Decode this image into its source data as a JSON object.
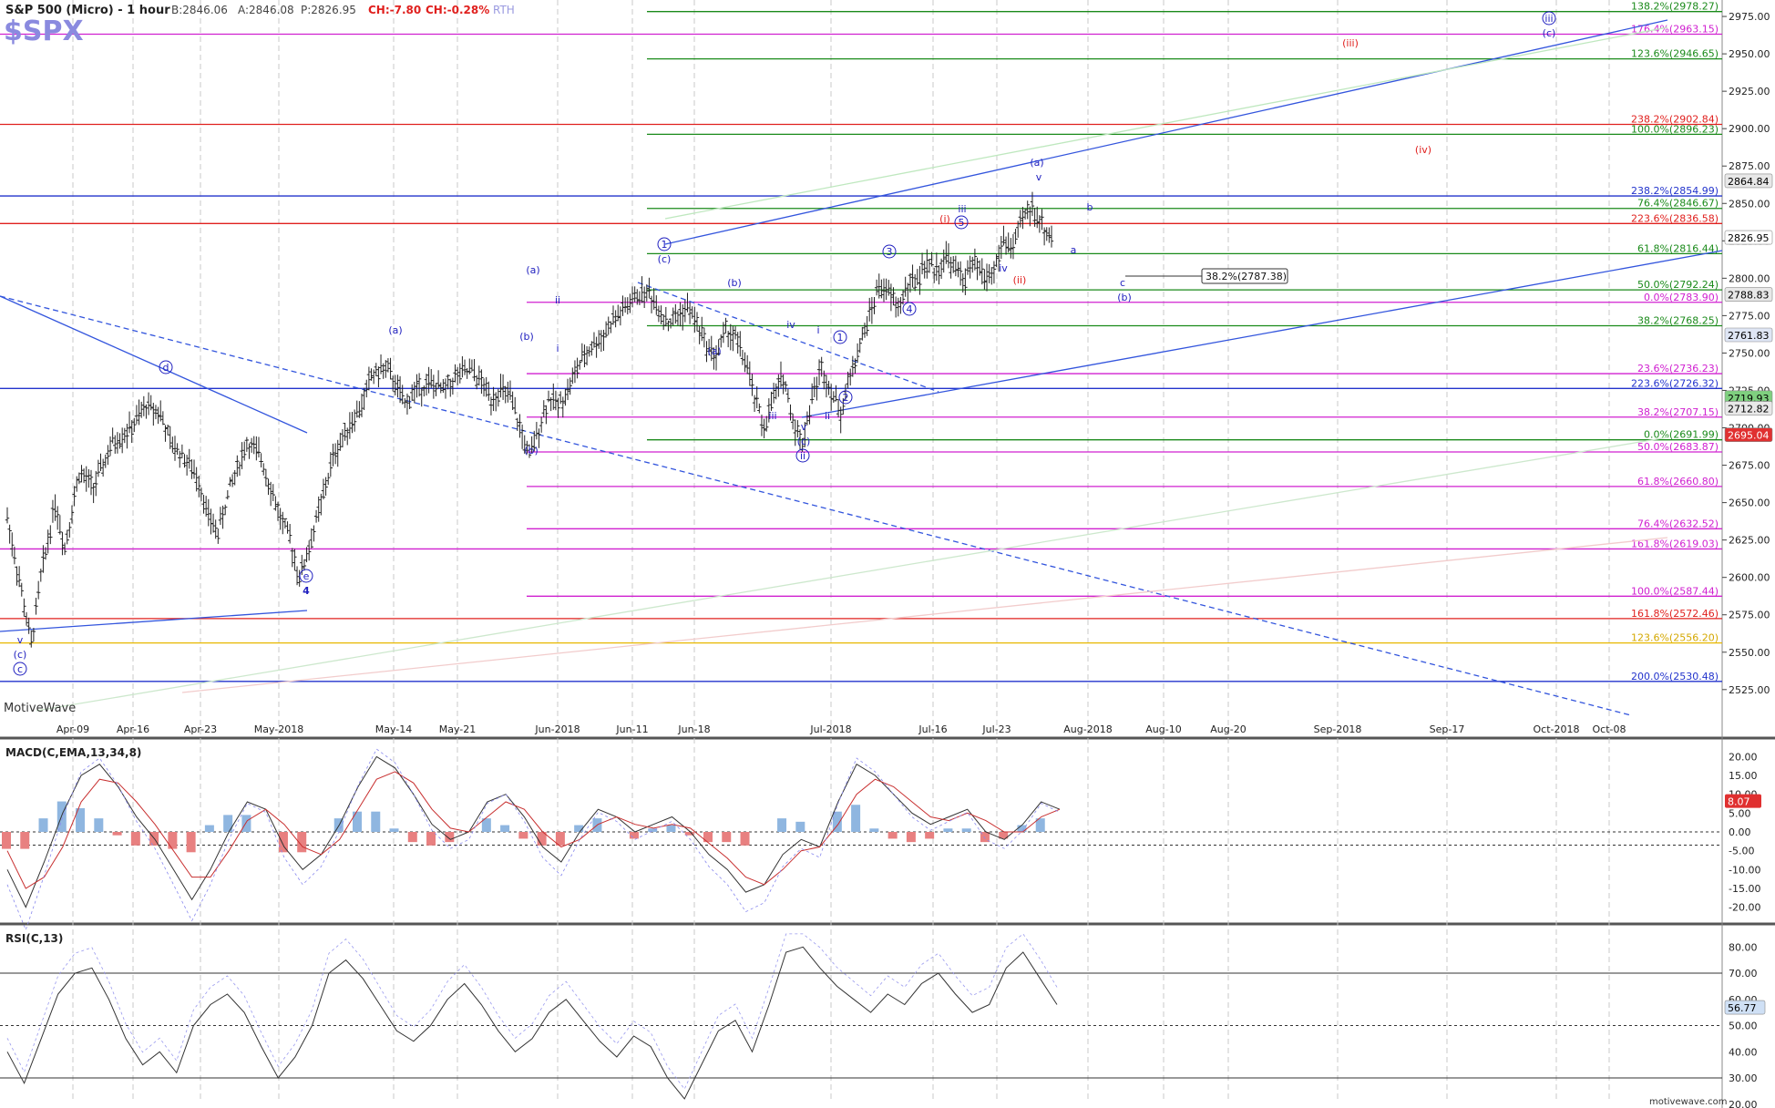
{
  "header": {
    "symbol_title": "S&P 500 (Micro) - 1 hour",
    "bid": "B:2846.06",
    "ask": "A:2846.08",
    "price": "P:2826.95",
    "change": "CH:-7.80",
    "change_pct": "CH:-0.28%",
    "session": "RTH",
    "ticker": "$SPX",
    "watermark": "MotiveWave",
    "footer_site": "motivewave.com"
  },
  "colors": {
    "green": "#1a8a1a",
    "red": "#e0201e",
    "magenta": "#d020d0",
    "blue": "#2233cc",
    "orange": "#e8b800",
    "navy": "#1f1fbf",
    "candle": "#222222"
  },
  "chart_data": [
    {
      "type": "bar",
      "title": "S&P 500 (Micro) - 1 hour",
      "x_labels": [
        "Apr-09",
        "Apr-16",
        "Apr-23",
        "May-2018",
        "May-14",
        "May-21",
        "Jun-2018",
        "Jun-11",
        "Jun-18",
        "Jul-2018",
        "Jul-16",
        "Jul-23",
        "Aug-2018",
        "Aug-10",
        "Aug-20",
        "Sep-2018",
        "Sep-17",
        "Oct-2018",
        "Oct-08"
      ],
      "y_ticks": [
        2525,
        2550,
        2575,
        2600,
        2625,
        2650,
        2675,
        2700,
        2725,
        2750,
        2775,
        2800,
        2825,
        2850,
        2875,
        2900,
        2925,
        2950,
        2975
      ],
      "ylim": [
        2506,
        2986
      ],
      "price_path": [
        [
          0,
          2640
        ],
        [
          6,
          2590
        ],
        [
          10,
          2555
        ],
        [
          14,
          2600
        ],
        [
          20,
          2650
        ],
        [
          24,
          2620
        ],
        [
          30,
          2670
        ],
        [
          36,
          2660
        ],
        [
          44,
          2690
        ],
        [
          52,
          2700
        ],
        [
          58,
          2715
        ],
        [
          64,
          2710
        ],
        [
          68,
          2690
        ],
        [
          74,
          2680
        ],
        [
          80,
          2665
        ],
        [
          84,
          2640
        ],
        [
          88,
          2630
        ],
        [
          93,
          2660
        ],
        [
          100,
          2690
        ],
        [
          106,
          2680
        ],
        [
          110,
          2660
        ],
        [
          114,
          2640
        ],
        [
          118,
          2625
        ],
        [
          122,
          2600
        ],
        [
          126,
          2620
        ],
        [
          132,
          2655
        ],
        [
          136,
          2680
        ],
        [
          142,
          2700
        ],
        [
          148,
          2715
        ],
        [
          152,
          2735
        ],
        [
          158,
          2740
        ],
        [
          162,
          2730
        ],
        [
          166,
          2715
        ],
        [
          170,
          2725
        ],
        [
          176,
          2730
        ],
        [
          182,
          2725
        ],
        [
          188,
          2735
        ],
        [
          194,
          2738
        ],
        [
          198,
          2730
        ],
        [
          202,
          2720
        ],
        [
          206,
          2725
        ],
        [
          210,
          2720
        ],
        [
          214,
          2700
        ],
        [
          218,
          2680
        ],
        [
          222,
          2700
        ],
        [
          226,
          2720
        ],
        [
          230,
          2715
        ],
        [
          234,
          2725
        ],
        [
          238,
          2740
        ],
        [
          244,
          2755
        ],
        [
          248,
          2760
        ],
        [
          252,
          2770
        ],
        [
          258,
          2780
        ],
        [
          264,
          2790
        ],
        [
          268,
          2790
        ],
        [
          272,
          2780
        ],
        [
          276,
          2770
        ],
        [
          280,
          2775
        ],
        [
          284,
          2780
        ],
        [
          288,
          2770
        ],
        [
          292,
          2755
        ],
        [
          296,
          2748
        ],
        [
          300,
          2765
        ],
        [
          304,
          2760
        ],
        [
          308,
          2745
        ],
        [
          312,
          2720
        ],
        [
          316,
          2700
        ],
        [
          320,
          2720
        ],
        [
          324,
          2735
        ],
        [
          328,
          2705
        ],
        [
          332,
          2690
        ],
        [
          336,
          2720
        ],
        [
          340,
          2740
        ],
        [
          344,
          2725
        ],
        [
          348,
          2710
        ],
        [
          352,
          2735
        ],
        [
          356,
          2755
        ],
        [
          360,
          2775
        ],
        [
          364,
          2795
        ],
        [
          368,
          2790
        ],
        [
          372,
          2780
        ],
        [
          376,
          2795
        ],
        [
          380,
          2800
        ],
        [
          384,
          2810
        ],
        [
          388,
          2805
        ],
        [
          392,
          2815
        ],
        [
          396,
          2805
        ],
        [
          400,
          2800
        ],
        [
          404,
          2810
        ],
        [
          408,
          2800
        ],
        [
          412,
          2805
        ],
        [
          416,
          2825
        ],
        [
          420,
          2820
        ],
        [
          424,
          2840
        ],
        [
          428,
          2848
        ],
        [
          432,
          2835
        ],
        [
          436,
          2827
        ]
      ],
      "x_span": 614
    },
    {
      "type": "line",
      "title": "MACD(C,EMA,13,34,8)",
      "ylim": [
        -23,
        23
      ],
      "y_ticks": [
        20,
        15,
        10,
        5,
        0,
        -5,
        -10,
        -15,
        -20
      ],
      "current_value": "8.07",
      "series": [
        {
          "values": [
            -10,
            -20,
            -8,
            5,
            15,
            18,
            12,
            4,
            -2,
            -10,
            -18,
            -10,
            0,
            8,
            6,
            -4,
            -10,
            -6,
            2,
            12,
            20,
            17,
            10,
            2,
            -2,
            0,
            8,
            10,
            4,
            -4,
            -8,
            0,
            6,
            4,
            0,
            2,
            4,
            0,
            -6,
            -10,
            -16,
            -14,
            -6,
            -2,
            -4,
            8,
            18,
            15,
            10,
            5,
            2,
            4,
            6,
            0,
            -2,
            2,
            8,
            6
          ]
        },
        {
          "values": [
            -5,
            -15,
            -12,
            -4,
            8,
            14,
            13,
            8,
            2,
            -5,
            -12,
            -12,
            -5,
            3,
            6,
            2,
            -4,
            -6,
            -2,
            6,
            14,
            16,
            13,
            6,
            1,
            0,
            4,
            8,
            6,
            0,
            -4,
            -2,
            2,
            4,
            2,
            1,
            2,
            1,
            -3,
            -7,
            -12,
            -14,
            -10,
            -5,
            -4,
            2,
            10,
            14,
            12,
            8,
            4,
            3,
            5,
            3,
            0,
            0,
            4,
            6
          ]
        }
      ]
    },
    {
      "type": "line",
      "title": "RSI(C,13)",
      "ylim": [
        22,
        86
      ],
      "y_ticks": [
        80,
        70,
        60,
        50,
        40,
        30,
        20
      ],
      "current_value": "56.77",
      "series": [
        {
          "values": [
            40,
            28,
            45,
            62,
            70,
            72,
            60,
            45,
            35,
            40,
            32,
            50,
            58,
            62,
            55,
            42,
            30,
            38,
            50,
            70,
            75,
            68,
            58,
            48,
            44,
            50,
            60,
            66,
            58,
            48,
            40,
            45,
            55,
            60,
            52,
            44,
            38,
            46,
            42,
            30,
            22,
            35,
            48,
            52,
            40,
            58,
            78,
            80,
            72,
            65,
            60,
            55,
            62,
            58,
            66,
            70,
            62,
            55,
            58,
            72,
            78,
            68,
            58
          ]
        }
      ]
    }
  ],
  "price_levels": [
    {
      "label": "138.2%(2978.27)",
      "value": 2978.27,
      "color": "green",
      "x_start": 710
    },
    {
      "label": "176.4%(2963.15)",
      "value": 2963.15,
      "color": "magenta",
      "x_start": 0
    },
    {
      "label": "123.6%(2946.65)",
      "value": 2946.65,
      "color": "green",
      "x_start": 710
    },
    {
      "label": "238.2%(2902.84)",
      "value": 2902.84,
      "color": "red",
      "x_start": 0
    },
    {
      "label": "100.0%(2896.23)",
      "value": 2896.23,
      "color": "green",
      "x_start": 710
    },
    {
      "label": "238.2%(2854.99)",
      "value": 2854.99,
      "color": "blue",
      "x_start": 0
    },
    {
      "label": "76.4%(2846.67)",
      "value": 2846.67,
      "color": "green",
      "x_start": 710
    },
    {
      "label": "223.6%(2836.58)",
      "value": 2836.58,
      "color": "red",
      "x_start": 0
    },
    {
      "label": "61.8%(2816.44)",
      "value": 2816.44,
      "color": "green",
      "x_start": 710
    },
    {
      "label": "50.0%(2792.24)",
      "value": 2792.24,
      "color": "green",
      "x_start": 710
    },
    {
      "label": "0.0%(2783.90)",
      "value": 2783.9,
      "color": "magenta",
      "x_start": 578
    },
    {
      "label": "38.2%(2768.25)",
      "value": 2768.25,
      "color": "green",
      "x_start": 710
    },
    {
      "label": "23.6%(2736.23)",
      "value": 2736.23,
      "color": "magenta",
      "x_start": 578
    },
    {
      "label": "223.6%(2726.32)",
      "value": 2726.32,
      "color": "blue",
      "x_start": 0
    },
    {
      "label": "38.2%(2707.15)",
      "value": 2707.15,
      "color": "magenta",
      "x_start": 578
    },
    {
      "label": "0.0%(2691.99)",
      "value": 2691.99,
      "color": "green",
      "x_start": 710
    },
    {
      "label": "50.0%(2683.87)",
      "value": 2683.87,
      "color": "magenta",
      "x_start": 578
    },
    {
      "label": "61.8%(2660.80)",
      "value": 2660.8,
      "color": "magenta",
      "x_start": 578
    },
    {
      "label": "76.4%(2632.52)",
      "value": 2632.52,
      "color": "magenta",
      "x_start": 578
    },
    {
      "label": "161.8%(2619.03)",
      "value": 2619.03,
      "color": "magenta",
      "x_start": 0
    },
    {
      "label": "100.0%(2587.44)",
      "value": 2587.44,
      "color": "magenta",
      "x_start": 578
    },
    {
      "label": "161.8%(2572.46)",
      "value": 2572.46,
      "color": "red",
      "x_start": 0
    },
    {
      "label": "123.6%(2556.20)",
      "value": 2556.2,
      "color": "orange",
      "x_start": 0
    },
    {
      "label": "200.0%(2530.48)",
      "value": 2530.48,
      "color": "blue",
      "x_start": 0
    }
  ],
  "right_badges": [
    {
      "text": "2864.84",
      "value": 2864.84,
      "bg": "#e8e8e8",
      "fg": "#000"
    },
    {
      "text": "2826.95",
      "value": 2826.95,
      "bg": "#ffffff",
      "fg": "#000"
    },
    {
      "text": "2788.83",
      "value": 2788.83,
      "bg": "#e8e8e8",
      "fg": "#000"
    },
    {
      "text": "2761.83",
      "value": 2761.83,
      "bg": "#dfe6f5",
      "fg": "#000"
    },
    {
      "text": "2719.93",
      "value": 2719.93,
      "bg": "#7fd07f",
      "fg": "#000"
    },
    {
      "text": "2712.82",
      "value": 2712.82,
      "bg": "#e8e8e8",
      "fg": "#000"
    },
    {
      "text": "2695.04",
      "value": 2695.04,
      "bg": "#e03030",
      "fg": "#fff"
    }
  ],
  "box_label": "38.2%(2787.38)",
  "wave_labels": [
    {
      "t": "(a)",
      "c": "navy"
    },
    {
      "t": "(b)",
      "c": "navy"
    },
    {
      "t": "(c)",
      "c": "navy"
    },
    {
      "t": "d",
      "c": "navy",
      "circ": true
    },
    {
      "t": "e",
      "c": "navy",
      "circ": true
    },
    {
      "t": "4",
      "c": "navy"
    },
    {
      "t": "v",
      "c": "navy"
    },
    {
      "t": "c",
      "c": "navy",
      "circ": true
    },
    {
      "t": "(a)",
      "c": "navy"
    },
    {
      "t": "(b)",
      "c": "navy"
    },
    {
      "t": "1",
      "c": "navy",
      "circ": true
    },
    {
      "t": "(c)",
      "c": "navy"
    },
    {
      "t": "(b)",
      "c": "navy"
    },
    {
      "t": "(a)",
      "c": "navy"
    },
    {
      "t": "ii",
      "c": "navy"
    },
    {
      "t": "i",
      "c": "navy"
    },
    {
      "t": "iv",
      "c": "navy"
    },
    {
      "t": "i",
      "c": "navy"
    },
    {
      "t": "iii",
      "c": "navy"
    },
    {
      "t": "v",
      "c": "navy"
    },
    {
      "t": "(c)",
      "c": "navy"
    },
    {
      "t": "ii",
      "c": "navy",
      "circ": true
    },
    {
      "t": "ii",
      "c": "navy"
    },
    {
      "t": "1",
      "c": "navy",
      "circ": true
    },
    {
      "t": "2",
      "c": "navy",
      "circ": true
    },
    {
      "t": "3",
      "c": "navy",
      "circ": true
    },
    {
      "t": "4",
      "c": "navy",
      "circ": true
    },
    {
      "t": "(i)",
      "c": "red"
    },
    {
      "t": "iii",
      "c": "navy"
    },
    {
      "t": "5",
      "c": "navy",
      "circ": true
    },
    {
      "t": "iv",
      "c": "navy"
    },
    {
      "t": "(ii)",
      "c": "red"
    },
    {
      "t": "(a)",
      "c": "navy"
    },
    {
      "t": "v",
      "c": "navy"
    },
    {
      "t": "b",
      "c": "navy"
    },
    {
      "t": "a",
      "c": "navy"
    },
    {
      "t": "c",
      "c": "navy"
    },
    {
      "t": "(b)",
      "c": "navy"
    },
    {
      "t": "(iii)",
      "c": "red"
    },
    {
      "t": "(iv)",
      "c": "red"
    },
    {
      "t": "iii",
      "c": "navy",
      "circ": true
    },
    {
      "t": "(c)",
      "c": "navy"
    }
  ]
}
